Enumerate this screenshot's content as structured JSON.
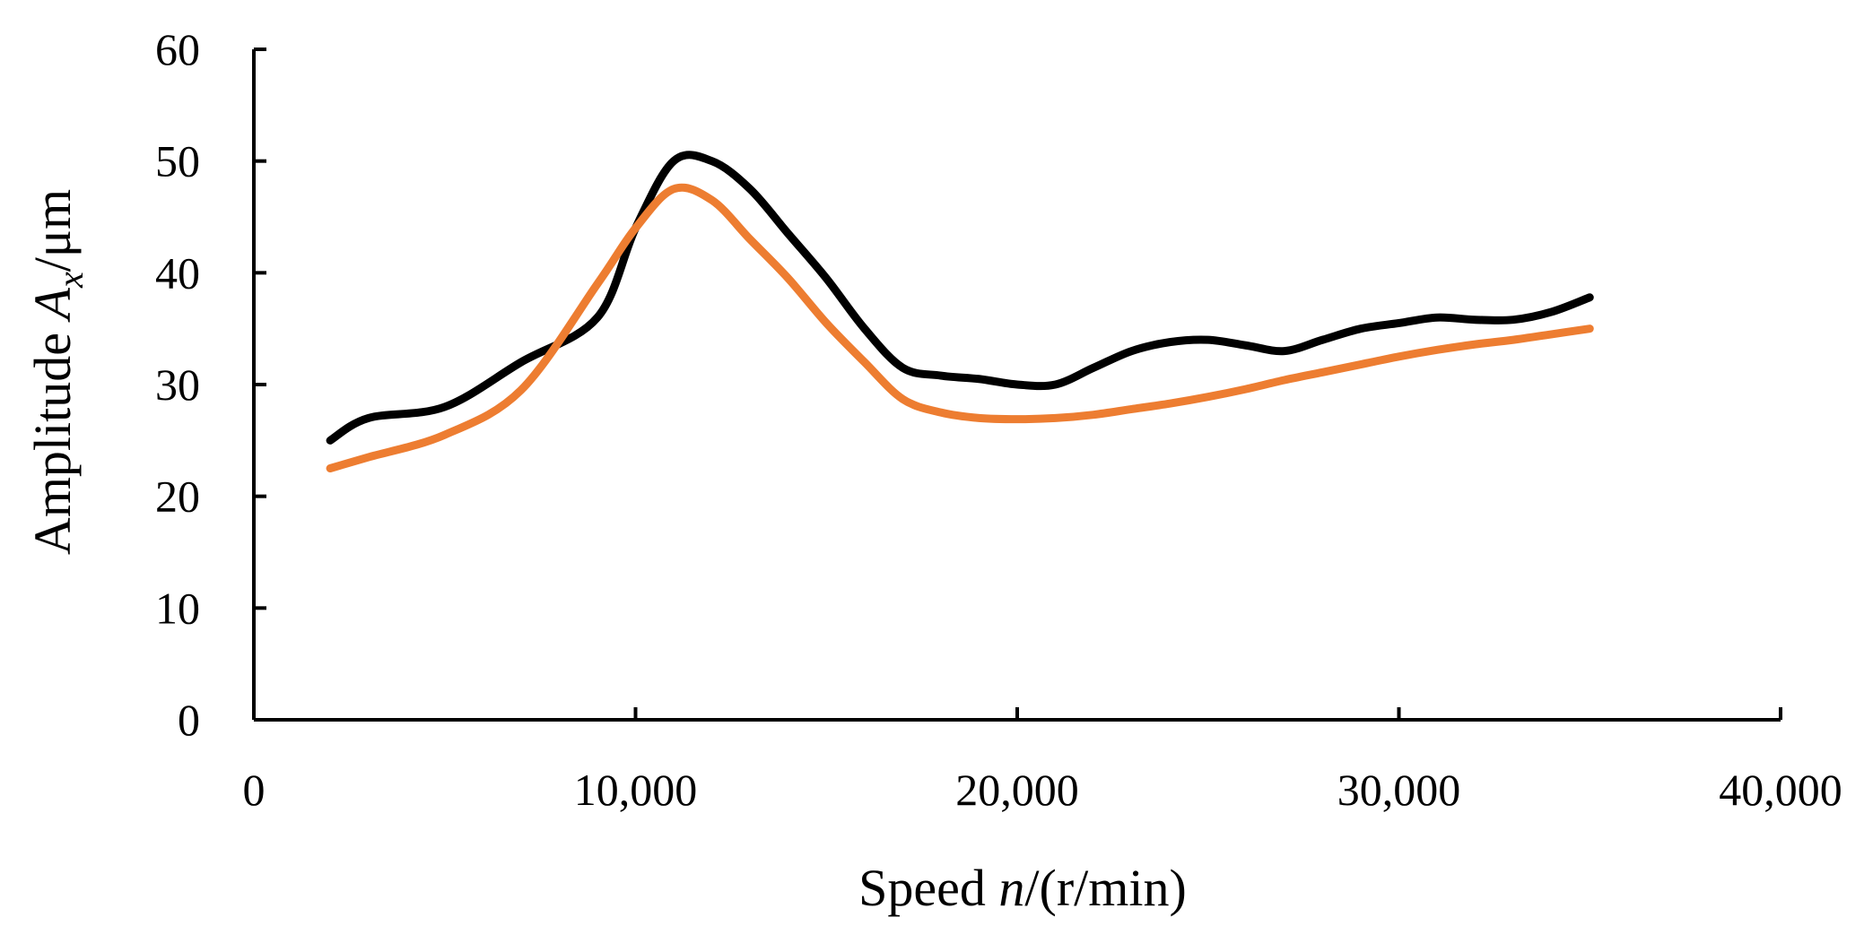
{
  "chart_data": {
    "type": "line",
    "title": "",
    "xlabel": {
      "prefix": "Speed ",
      "var": "n",
      "suffix": "/(r/min)"
    },
    "ylabel": {
      "prefix": "Amplitude ",
      "var": "A",
      "sub": "x",
      "suffix": "/μm"
    },
    "xlim": [
      0,
      40000
    ],
    "ylim": [
      0,
      60
    ],
    "x_ticks": [
      0,
      10000,
      20000,
      30000,
      40000
    ],
    "x_tick_labels": [
      "0",
      "10,000",
      "20,000",
      "30,000",
      "40,000"
    ],
    "y_ticks": [
      0,
      10,
      20,
      30,
      40,
      50,
      60
    ],
    "y_tick_labels": [
      "0",
      "10",
      "20",
      "30",
      "40",
      "50",
      "60"
    ],
    "grid": false,
    "legend": "none",
    "series": [
      {
        "name": "series-1",
        "color": "#000000",
        "x": [
          2000,
          3000,
          5000,
          7000,
          9000,
          10000,
          11000,
          12000,
          13000,
          14000,
          15000,
          16000,
          17000,
          18000,
          19000,
          20000,
          21000,
          22000,
          23000,
          24000,
          25000,
          26000,
          27000,
          28000,
          29000,
          30000,
          31000,
          32000,
          33000,
          34000,
          35000
        ],
        "values": [
          25,
          27,
          28,
          32,
          36,
          44,
          50,
          50,
          47.5,
          43.5,
          39.5,
          35,
          31.5,
          30.8,
          30.5,
          30,
          30,
          31.5,
          33,
          33.8,
          34,
          33.5,
          33,
          34,
          35,
          35.5,
          36,
          35.8,
          35.8,
          36.5,
          37.8
        ]
      },
      {
        "name": "series-2",
        "color": "#ED7D31",
        "x": [
          2000,
          3000,
          5000,
          7000,
          9000,
          10000,
          11000,
          12000,
          13000,
          14000,
          15000,
          16000,
          17000,
          18000,
          19000,
          20000,
          21000,
          22000,
          23000,
          24000,
          25000,
          26000,
          27000,
          28000,
          29000,
          30000,
          31000,
          32000,
          33000,
          34000,
          35000
        ],
        "values": [
          22.5,
          23.5,
          25.5,
          29.5,
          39,
          44,
          47.5,
          46.5,
          43,
          39.5,
          35.5,
          32,
          28.7,
          27.5,
          27,
          26.9,
          27,
          27.3,
          27.8,
          28.3,
          28.9,
          29.6,
          30.4,
          31.1,
          31.8,
          32.5,
          33.1,
          33.6,
          34,
          34.5,
          35
        ]
      }
    ]
  }
}
